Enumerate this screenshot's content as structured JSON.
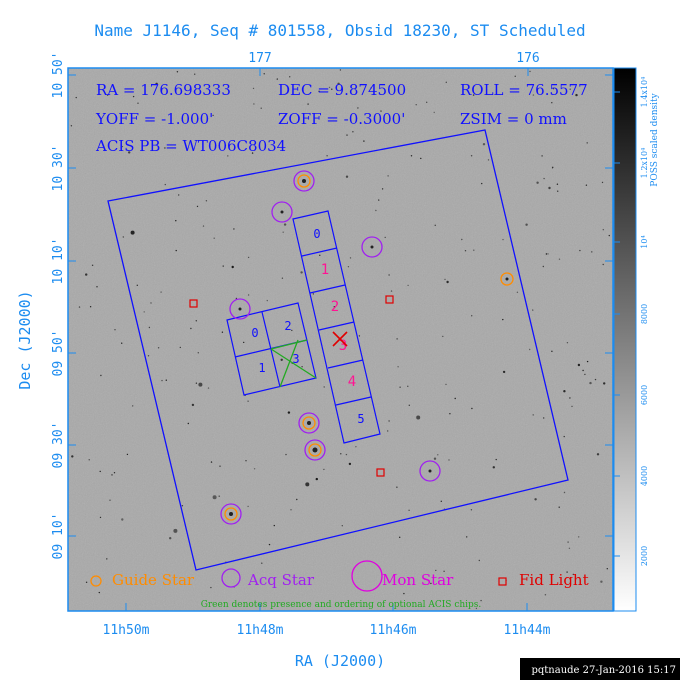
{
  "title": "Name J1146, Seq # 801558, Obsid 18230, ST Scheduled",
  "top_axis_labels": [
    "177",
    "176"
  ],
  "info": {
    "ra": "RA = 176.698333",
    "dec": "DEC = 9.874500",
    "roll": "ROLL = 76.5577",
    "yoff": "YOFF = -1.000'",
    "zoff": "ZOFF = -0.3000'",
    "zsim": "ZSIM = 0 mm",
    "acis_pb": "ACIS PB = WT006C8034"
  },
  "y_axis": {
    "label": "Dec (J2000)",
    "ticks": [
      "10 50'",
      "10 30'",
      "10 10'",
      "09 50'",
      "09 30'",
      "09 10'"
    ]
  },
  "x_axis": {
    "label": "RA (J2000)",
    "ticks": [
      "11h50m",
      "11h48m",
      "11h46m",
      "11h44m"
    ]
  },
  "colorbar": {
    "label": "POSS scaled density",
    "ticks": [
      "2000",
      "4000",
      "6000",
      "8000",
      "10⁴",
      "1.2x10⁴",
      "1.4x10⁴"
    ]
  },
  "chips_left": [
    "0",
    "2",
    "1",
    "3"
  ],
  "chips_right": [
    "0",
    "1",
    "2",
    "3",
    "4",
    "5"
  ],
  "legend": {
    "guide": "Guide Star",
    "acq": "Acq Star",
    "mon": "Mon Star",
    "fid": "Fid Light"
  },
  "note": "Green denotes presence and ordering of optional ACIS chips.",
  "footer": "pqtnaude 27-Jan-2016 15:17",
  "colors": {
    "text_blue": "#1c8cf0",
    "frame_blue": "#1010ff",
    "guide": "#ff8c00",
    "acq": "#a020f0",
    "mon": "#e000e0",
    "fid": "#e00000",
    "optional": "#22aa22",
    "chip_pink": "#ff1493"
  }
}
